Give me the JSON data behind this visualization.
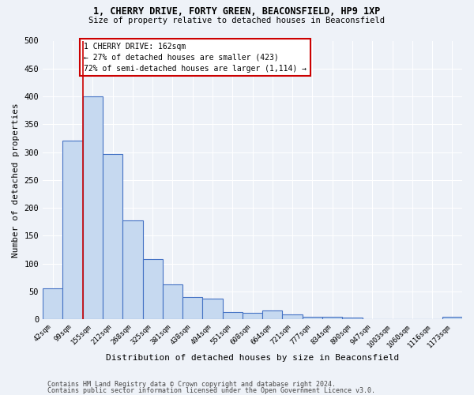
{
  "title1": "1, CHERRY DRIVE, FORTY GREEN, BEACONSFIELD, HP9 1XP",
  "title2": "Size of property relative to detached houses in Beaconsfield",
  "xlabel": "Distribution of detached houses by size in Beaconsfield",
  "ylabel": "Number of detached properties",
  "categories": [
    "42sqm",
    "99sqm",
    "155sqm",
    "212sqm",
    "268sqm",
    "325sqm",
    "381sqm",
    "438sqm",
    "494sqm",
    "551sqm",
    "608sqm",
    "664sqm",
    "721sqm",
    "777sqm",
    "834sqm",
    "890sqm",
    "947sqm",
    "1003sqm",
    "1060sqm",
    "1116sqm",
    "1173sqm"
  ],
  "values": [
    55,
    320,
    400,
    297,
    177,
    108,
    63,
    40,
    37,
    13,
    12,
    16,
    9,
    5,
    4,
    3,
    0,
    0,
    0,
    0,
    5
  ],
  "bar_color": "#c6d9f0",
  "bar_edge_color": "#4472c4",
  "property_line_bin": 2,
  "annotation_line1": "1 CHERRY DRIVE: 162sqm",
  "annotation_line2": "← 27% of detached houses are smaller (423)",
  "annotation_line3": "72% of semi-detached houses are larger (1,114) →",
  "annotation_box_color": "#ffffff",
  "annotation_box_edge": "#cc0000",
  "ylim": [
    0,
    500
  ],
  "yticks": [
    0,
    50,
    100,
    150,
    200,
    250,
    300,
    350,
    400,
    450,
    500
  ],
  "footer1": "Contains HM Land Registry data © Crown copyright and database right 2024.",
  "footer2": "Contains public sector information licensed under the Open Government Licence v3.0.",
  "bg_color": "#eef2f8",
  "grid_color": "#ffffff"
}
